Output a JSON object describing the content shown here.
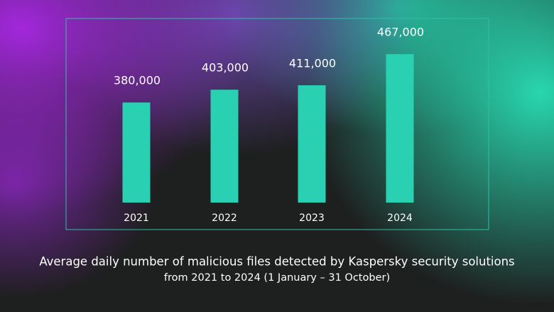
{
  "chart_data": {
    "type": "bar",
    "title": "Average daily number of malicious files detected by Kaspersky security solutions",
    "subtitle": "from 2021 to 2024 (1 January – 31 October)",
    "categories": [
      "2021",
      "2022",
      "2023",
      "2024"
    ],
    "values": [
      380000,
      403000,
      411000,
      467000
    ],
    "value_labels": [
      "380,000",
      "403,000",
      "411,000",
      "467,000"
    ],
    "color": "#29d1b2",
    "ylim": [
      200000,
      480000
    ]
  }
}
